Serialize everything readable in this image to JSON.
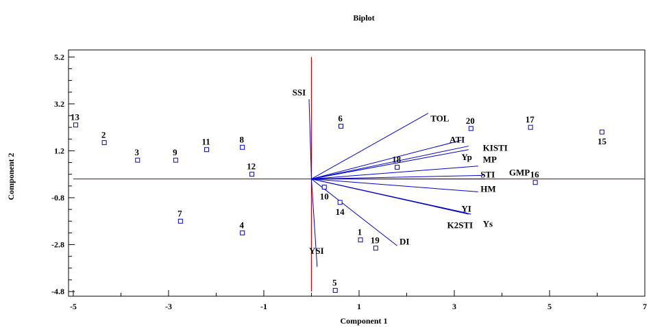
{
  "chart_data": {
    "type": "scatter",
    "title": "Biplot",
    "xlabel": "Component 1",
    "ylabel": "Component 2",
    "xlim": [
      -5.1,
      7.0
    ],
    "ylim": [
      -5.0,
      5.5
    ],
    "xticks": [
      "-5",
      "-3",
      "-1",
      "1",
      "3",
      "5",
      "7"
    ],
    "yticks": [
      "5.2",
      "3.2",
      "1.2",
      "-0.8",
      "-2.8",
      "-4.8"
    ],
    "colors": {
      "points": "#0000cc",
      "vectors": "#0000cc",
      "axes": "#cc0000"
    },
    "points": [
      {
        "label": "1",
        "x": 1.03,
        "y": -2.6
      },
      {
        "label": "2",
        "x": -4.35,
        "y": 1.55
      },
      {
        "label": "3",
        "x": -3.65,
        "y": 0.8
      },
      {
        "label": "4",
        "x": -1.45,
        "y": -2.3
      },
      {
        "label": "5",
        "x": 0.5,
        "y": -4.75
      },
      {
        "label": "6",
        "x": 0.62,
        "y": 2.25
      },
      {
        "label": "7",
        "x": -2.75,
        "y": -1.8
      },
      {
        "label": "8",
        "x": -1.45,
        "y": 1.35
      },
      {
        "label": "9",
        "x": -2.85,
        "y": 0.8
      },
      {
        "label": "10",
        "x": 0.27,
        "y": -0.35
      },
      {
        "label": "11",
        "x": -2.2,
        "y": 1.25
      },
      {
        "label": "12",
        "x": -1.25,
        "y": 0.2
      },
      {
        "label": "13",
        "x": -4.95,
        "y": 2.3
      },
      {
        "label": "14",
        "x": 0.6,
        "y": -1.0
      },
      {
        "label": "15",
        "x": 6.1,
        "y": 2.0
      },
      {
        "label": "16",
        "x": 4.7,
        "y": -0.15
      },
      {
        "label": "17",
        "x": 4.6,
        "y": 2.2
      },
      {
        "label": "18",
        "x": 1.8,
        "y": 0.5
      },
      {
        "label": "19",
        "x": 1.35,
        "y": -2.95
      },
      {
        "label": "20",
        "x": 3.35,
        "y": 2.15
      }
    ],
    "vectors": [
      {
        "label": "SSI",
        "x": -0.05,
        "y": 3.4
      },
      {
        "label": "TOL",
        "x": 2.45,
        "y": 2.8
      },
      {
        "label": "ATI",
        "x": 3.15,
        "y": 1.65
      },
      {
        "label": "KISTI",
        "x": 3.3,
        "y": 1.4
      },
      {
        "label": "Yp",
        "x": 3.3,
        "y": 1.25
      },
      {
        "label": "MP",
        "x": 3.5,
        "y": 0.55
      },
      {
        "label": "STI",
        "x": 3.6,
        "y": 0.15
      },
      {
        "label": "GMP",
        "x": 3.65,
        "y": 0.0
      },
      {
        "label": "HM",
        "x": 3.5,
        "y": -0.55
      },
      {
        "label": "YI",
        "x": 3.25,
        "y": -1.45
      },
      {
        "label": "K2STI",
        "x": 3.3,
        "y": -1.5
      },
      {
        "label": "Ys",
        "x": 3.35,
        "y": -1.5
      },
      {
        "label": "DI",
        "x": 1.8,
        "y": -2.85
      },
      {
        "label": "YSI",
        "x": 0.12,
        "y": -3.75
      }
    ],
    "vector_label_positions": {
      "SSI": [
        -0.4,
        3.7
      ],
      "TOL": [
        2.5,
        2.6
      ],
      "ATI": [
        2.9,
        1.7
      ],
      "KISTI": [
        3.6,
        1.35
      ],
      "Yp": [
        3.15,
        0.95
      ],
      "MP": [
        3.6,
        0.85
      ],
      "STI": [
        3.55,
        0.2
      ],
      "GMP": [
        4.15,
        0.3
      ],
      "HM": [
        3.55,
        -0.4
      ],
      "YI": [
        3.15,
        -1.25
      ],
      "K2STI": [
        2.85,
        -1.95
      ],
      "Ys": [
        3.6,
        -1.9
      ],
      "DI": [
        1.85,
        -2.65
      ],
      "YSI": [
        -0.05,
        -3.05
      ]
    }
  }
}
